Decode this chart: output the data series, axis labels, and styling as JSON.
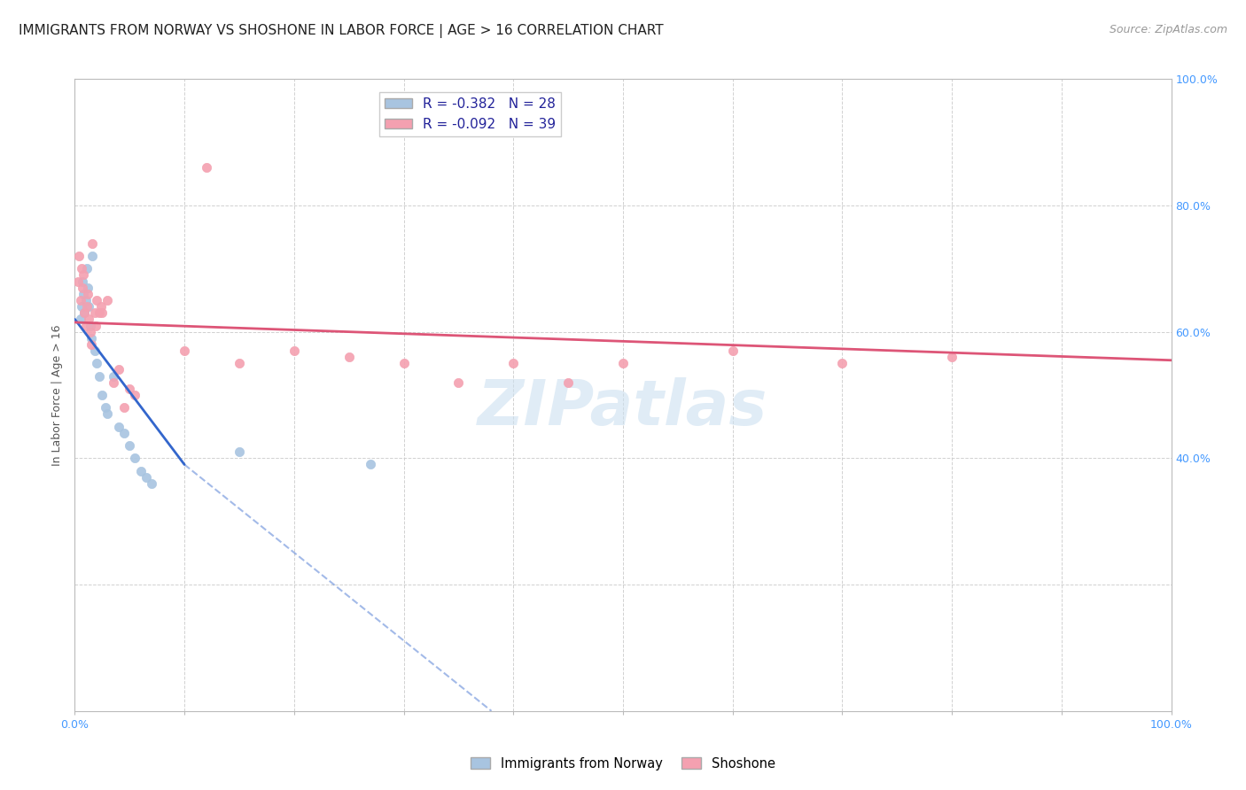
{
  "title": "IMMIGRANTS FROM NORWAY VS SHOSHONE IN LABOR FORCE | AGE > 16 CORRELATION CHART",
  "source": "Source: ZipAtlas.com",
  "ylabel": "In Labor Force | Age > 16",
  "xlim": [
    0,
    100.0
  ],
  "ylim": [
    0,
    100.0
  ],
  "watermark": "ZIPatlas",
  "legend_R1": "R = -0.382",
  "legend_N1": "N = 28",
  "legend_R2": "R = -0.092",
  "legend_N2": "N = 39",
  "norway_color": "#a8c4e0",
  "shoshone_color": "#f4a0b0",
  "norway_line_color": "#3366cc",
  "shoshone_line_color": "#dd5577",
  "norway_scatter": [
    [
      0.5,
      62
    ],
    [
      0.6,
      64
    ],
    [
      0.7,
      68
    ],
    [
      0.8,
      66
    ],
    [
      0.9,
      63
    ],
    [
      1.0,
      65
    ],
    [
      1.1,
      70
    ],
    [
      1.2,
      67
    ],
    [
      1.3,
      64
    ],
    [
      1.4,
      61
    ],
    [
      1.5,
      59
    ],
    [
      1.6,
      72
    ],
    [
      1.8,
      57
    ],
    [
      2.0,
      55
    ],
    [
      2.2,
      53
    ],
    [
      2.5,
      50
    ],
    [
      2.8,
      48
    ],
    [
      3.0,
      47
    ],
    [
      3.5,
      53
    ],
    [
      4.0,
      45
    ],
    [
      4.5,
      44
    ],
    [
      5.0,
      42
    ],
    [
      5.5,
      40
    ],
    [
      6.0,
      38
    ],
    [
      6.5,
      37
    ],
    [
      7.0,
      36
    ],
    [
      15.0,
      41
    ],
    [
      27.0,
      39
    ]
  ],
  "shoshone_scatter": [
    [
      0.3,
      68
    ],
    [
      0.4,
      72
    ],
    [
      0.5,
      65
    ],
    [
      0.6,
      70
    ],
    [
      0.7,
      67
    ],
    [
      0.8,
      69
    ],
    [
      0.9,
      63
    ],
    [
      1.0,
      61
    ],
    [
      1.1,
      64
    ],
    [
      1.2,
      66
    ],
    [
      1.3,
      62
    ],
    [
      1.4,
      60
    ],
    [
      1.5,
      58
    ],
    [
      1.6,
      74
    ],
    [
      1.8,
      63
    ],
    [
      1.9,
      61
    ],
    [
      2.0,
      65
    ],
    [
      2.2,
      63
    ],
    [
      2.4,
      64
    ],
    [
      2.5,
      63
    ],
    [
      3.0,
      65
    ],
    [
      3.5,
      52
    ],
    [
      4.0,
      54
    ],
    [
      4.5,
      48
    ],
    [
      5.0,
      51
    ],
    [
      5.5,
      50
    ],
    [
      10.0,
      57
    ],
    [
      12.0,
      86
    ],
    [
      15.0,
      55
    ],
    [
      20.0,
      57
    ],
    [
      25.0,
      56
    ],
    [
      30.0,
      55
    ],
    [
      35.0,
      52
    ],
    [
      40.0,
      55
    ],
    [
      45.0,
      52
    ],
    [
      50.0,
      55
    ],
    [
      60.0,
      57
    ],
    [
      70.0,
      55
    ],
    [
      80.0,
      56
    ]
  ],
  "norway_trendline_solid": [
    [
      0.0,
      62.0
    ],
    [
      10.0,
      39.0
    ]
  ],
  "norway_trendline_dash": [
    [
      10.0,
      39.0
    ],
    [
      38.0,
      0.0
    ]
  ],
  "shoshone_trendline": [
    [
      0.0,
      61.5
    ],
    [
      100.0,
      55.5
    ]
  ],
  "title_fontsize": 11,
  "axis_label_fontsize": 9,
  "tick_fontsize": 9,
  "source_fontsize": 9,
  "scatter_size": 55,
  "background_color": "#ffffff",
  "grid_color": "#cccccc",
  "tick_color": "#4499ff",
  "axis_color": "#bbbbbb"
}
